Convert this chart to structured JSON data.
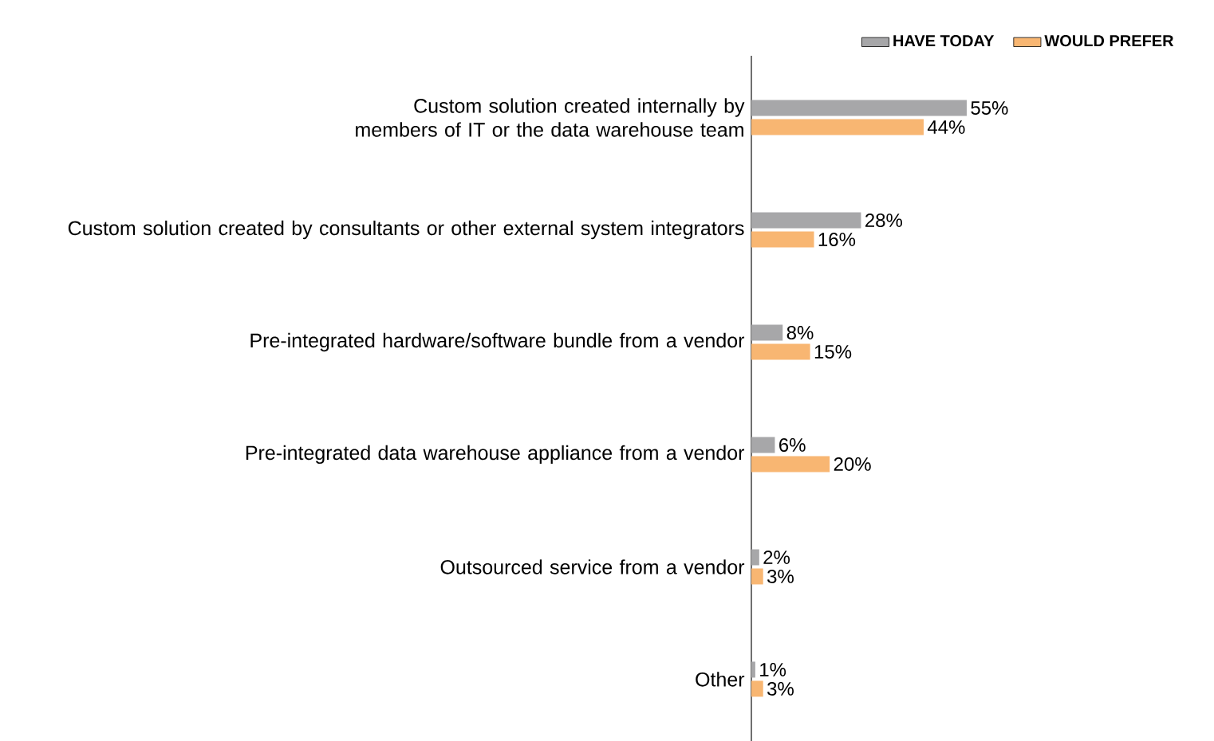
{
  "chart_data": {
    "type": "bar",
    "orientation": "horizontal",
    "legend": "top right",
    "data_labels": true,
    "categories": [
      "Custom solution created internally by members of IT or the data warehouse team",
      "Custom solution created by consultants or other external system integrators",
      "Pre-integrated hardware/software bundle from a vendor",
      "Pre-integrated data warehouse appliance from a vendor",
      "Outsourced service from a vendor",
      "Other"
    ],
    "series": [
      {
        "name": "HAVE TODAY",
        "color": "#a7a7a9",
        "values": [
          55,
          28,
          8,
          6,
          2,
          1
        ],
        "value_labels": [
          "55%",
          "28%",
          "8%",
          "6%",
          "2%",
          "1%"
        ]
      },
      {
        "name": "WOULD PREFER",
        "color": "#f8b672",
        "values": [
          44,
          16,
          15,
          20,
          3,
          3
        ],
        "value_labels": [
          "44%",
          "16%",
          "15%",
          "20%",
          "3%",
          "3%"
        ]
      }
    ]
  }
}
